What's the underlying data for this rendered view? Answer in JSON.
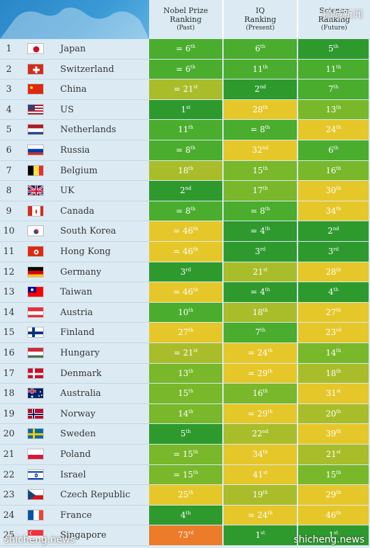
{
  "headers": {
    "col1": {
      "line1": "Nobel Prize",
      "line2": "Ranking",
      "sub": "(Past)"
    },
    "col2": {
      "line1": "IQ",
      "line2": "Ranking",
      "sub": "(Present)"
    },
    "col3": {
      "line1": "Science",
      "line2": "Ranking",
      "sub": "(Future)"
    }
  },
  "watermarks": {
    "top": "狮城新闻",
    "bottom_left": "shicheng.news",
    "bottom_right": "shicheng.news"
  },
  "colors": {
    "dark_green": "#2e9a2e",
    "green": "#4aad2e",
    "light_green": "#78b82a",
    "olive": "#a9bd2a",
    "yellow": "#e6c72a",
    "orange": "#ec7b2a"
  },
  "chart_data": {
    "type": "table",
    "columns": [
      "Nobel Prize Ranking (Past)",
      "IQ Ranking (Present)",
      "Science Ranking (Future)"
    ],
    "rows": [
      {
        "rank": "1",
        "country": "Japan",
        "flag": "japan-flag",
        "nobel": {
          "pre": "= ",
          "n": "6",
          "suf": "th"
        },
        "iq": {
          "pre": "",
          "n": "6",
          "suf": "th"
        },
        "sci": {
          "pre": "",
          "n": "5",
          "suf": "th"
        }
      },
      {
        "rank": "2",
        "country": "Switzerland",
        "flag": "switzerland-flag",
        "nobel": {
          "pre": "= ",
          "n": "6",
          "suf": "th"
        },
        "iq": {
          "pre": "",
          "n": "11",
          "suf": "th"
        },
        "sci": {
          "pre": "",
          "n": "11",
          "suf": "th"
        }
      },
      {
        "rank": "3",
        "country": "China",
        "flag": "china-flag",
        "nobel": {
          "pre": "= ",
          "n": "21",
          "suf": "st"
        },
        "iq": {
          "pre": "",
          "n": "2",
          "suf": "nd"
        },
        "sci": {
          "pre": "",
          "n": "7",
          "suf": "th"
        }
      },
      {
        "rank": "4",
        "country": "US",
        "flag": "us-flag",
        "nobel": {
          "pre": "",
          "n": "1",
          "suf": "st"
        },
        "iq": {
          "pre": "",
          "n": "28",
          "suf": "th"
        },
        "sci": {
          "pre": "",
          "n": "13",
          "suf": "th"
        }
      },
      {
        "rank": "5",
        "country": "Netherlands",
        "flag": "netherlands-flag",
        "nobel": {
          "pre": "",
          "n": "11",
          "suf": "th"
        },
        "iq": {
          "pre": "= ",
          "n": "8",
          "suf": "th"
        },
        "sci": {
          "pre": "",
          "n": "24",
          "suf": "th"
        }
      },
      {
        "rank": "6",
        "country": "Russia",
        "flag": "russia-flag",
        "nobel": {
          "pre": "= ",
          "n": "8",
          "suf": "th"
        },
        "iq": {
          "pre": "",
          "n": "32",
          "suf": "nd"
        },
        "sci": {
          "pre": "",
          "n": "6",
          "suf": "th"
        }
      },
      {
        "rank": "7",
        "country": "Belgium",
        "flag": "belgium-flag",
        "nobel": {
          "pre": "",
          "n": "18",
          "suf": "th"
        },
        "iq": {
          "pre": "",
          "n": "15",
          "suf": "th"
        },
        "sci": {
          "pre": "",
          "n": "16",
          "suf": "th"
        }
      },
      {
        "rank": "8",
        "country": "UK",
        "flag": "uk-flag",
        "nobel": {
          "pre": "",
          "n": "2",
          "suf": "nd"
        },
        "iq": {
          "pre": "",
          "n": "17",
          "suf": "th"
        },
        "sci": {
          "pre": "",
          "n": "30",
          "suf": "th"
        }
      },
      {
        "rank": "9",
        "country": "Canada",
        "flag": "canada-flag",
        "nobel": {
          "pre": "= ",
          "n": "8",
          "suf": "th"
        },
        "iq": {
          "pre": "= ",
          "n": "8",
          "suf": "th"
        },
        "sci": {
          "pre": "",
          "n": "34",
          "suf": "th"
        }
      },
      {
        "rank": "10",
        "country": "South Korea",
        "flag": "south-korea-flag",
        "nobel": {
          "pre": "= ",
          "n": "46",
          "suf": "th"
        },
        "iq": {
          "pre": "= ",
          "n": "4",
          "suf": "th"
        },
        "sci": {
          "pre": "",
          "n": "2",
          "suf": "nd"
        }
      },
      {
        "rank": "11",
        "country": "Hong Kong",
        "flag": "hong-kong-flag",
        "nobel": {
          "pre": "= ",
          "n": "46",
          "suf": "th"
        },
        "iq": {
          "pre": "",
          "n": "3",
          "suf": "rd"
        },
        "sci": {
          "pre": "",
          "n": "3",
          "suf": "rd"
        }
      },
      {
        "rank": "12",
        "country": "Germany",
        "flag": "germany-flag",
        "nobel": {
          "pre": "",
          "n": "3",
          "suf": "rd"
        },
        "iq": {
          "pre": "",
          "n": "21",
          "suf": "st"
        },
        "sci": {
          "pre": "",
          "n": "28",
          "suf": "th"
        }
      },
      {
        "rank": "13",
        "country": "Taiwan",
        "flag": "taiwan-flag",
        "nobel": {
          "pre": "= ",
          "n": "46",
          "suf": "th"
        },
        "iq": {
          "pre": "= ",
          "n": "4",
          "suf": "th"
        },
        "sci": {
          "pre": "",
          "n": "4",
          "suf": "th"
        }
      },
      {
        "rank": "14",
        "country": "Austria",
        "flag": "austria-flag",
        "nobel": {
          "pre": "",
          "n": "10",
          "suf": "th"
        },
        "iq": {
          "pre": "",
          "n": "18",
          "suf": "th"
        },
        "sci": {
          "pre": "",
          "n": "27",
          "suf": "th"
        }
      },
      {
        "rank": "15",
        "country": "Finland",
        "flag": "finland-flag",
        "nobel": {
          "pre": "",
          "n": "27",
          "suf": "th"
        },
        "iq": {
          "pre": "",
          "n": "7",
          "suf": "th"
        },
        "sci": {
          "pre": "",
          "n": "23",
          "suf": "rd"
        }
      },
      {
        "rank": "16",
        "country": "Hungary",
        "flag": "hungary-flag",
        "nobel": {
          "pre": "= ",
          "n": "21",
          "suf": "st"
        },
        "iq": {
          "pre": "= ",
          "n": "24",
          "suf": "th"
        },
        "sci": {
          "pre": "",
          "n": "14",
          "suf": "th"
        }
      },
      {
        "rank": "17",
        "country": "Denmark",
        "flag": "denmark-flag",
        "nobel": {
          "pre": "",
          "n": "13",
          "suf": "th"
        },
        "iq": {
          "pre": "= ",
          "n": "29",
          "suf": "th"
        },
        "sci": {
          "pre": "",
          "n": "18",
          "suf": "th"
        }
      },
      {
        "rank": "18",
        "country": "Australia",
        "flag": "australia-flag",
        "nobel": {
          "pre": "",
          "n": "15",
          "suf": "th"
        },
        "iq": {
          "pre": "",
          "n": "16",
          "suf": "th"
        },
        "sci": {
          "pre": "",
          "n": "31",
          "suf": "st"
        }
      },
      {
        "rank": "19",
        "country": "Norway",
        "flag": "norway-flag",
        "nobel": {
          "pre": "",
          "n": "14",
          "suf": "th"
        },
        "iq": {
          "pre": "= ",
          "n": "29",
          "suf": "th"
        },
        "sci": {
          "pre": "",
          "n": "20",
          "suf": "th"
        }
      },
      {
        "rank": "20",
        "country": "Sweden",
        "flag": "sweden-flag",
        "nobel": {
          "pre": "",
          "n": "5",
          "suf": "th"
        },
        "iq": {
          "pre": "",
          "n": "22",
          "suf": "nd"
        },
        "sci": {
          "pre": "",
          "n": "39",
          "suf": "th"
        }
      },
      {
        "rank": "21",
        "country": "Poland",
        "flag": "poland-flag",
        "nobel": {
          "pre": "= ",
          "n": "15",
          "suf": "th"
        },
        "iq": {
          "pre": "",
          "n": "34",
          "suf": "th"
        },
        "sci": {
          "pre": "",
          "n": "21",
          "suf": "st"
        }
      },
      {
        "rank": "22",
        "country": "Israel",
        "flag": "israel-flag",
        "nobel": {
          "pre": "= ",
          "n": "15",
          "suf": "th"
        },
        "iq": {
          "pre": "",
          "n": "41",
          "suf": "st"
        },
        "sci": {
          "pre": "",
          "n": "15",
          "suf": "th"
        }
      },
      {
        "rank": "23",
        "country": "Czech Republic",
        "flag": "czech-flag",
        "nobel": {
          "pre": "",
          "n": "25",
          "suf": "th"
        },
        "iq": {
          "pre": "",
          "n": "19",
          "suf": "th"
        },
        "sci": {
          "pre": "",
          "n": "29",
          "suf": "th"
        }
      },
      {
        "rank": "24",
        "country": "France",
        "flag": "france-flag",
        "nobel": {
          "pre": "",
          "n": "4",
          "suf": "th"
        },
        "iq": {
          "pre": "= ",
          "n": "24",
          "suf": "th"
        },
        "sci": {
          "pre": "",
          "n": "46",
          "suf": "th"
        }
      },
      {
        "rank": "25",
        "country": "Singapore",
        "flag": "singapore-flag",
        "nobel": {
          "pre": "",
          "n": "73",
          "suf": "rd"
        },
        "iq": {
          "pre": "",
          "n": "1",
          "suf": "st"
        },
        "sci": {
          "pre": "",
          "n": "1",
          "suf": "st"
        }
      }
    ]
  }
}
